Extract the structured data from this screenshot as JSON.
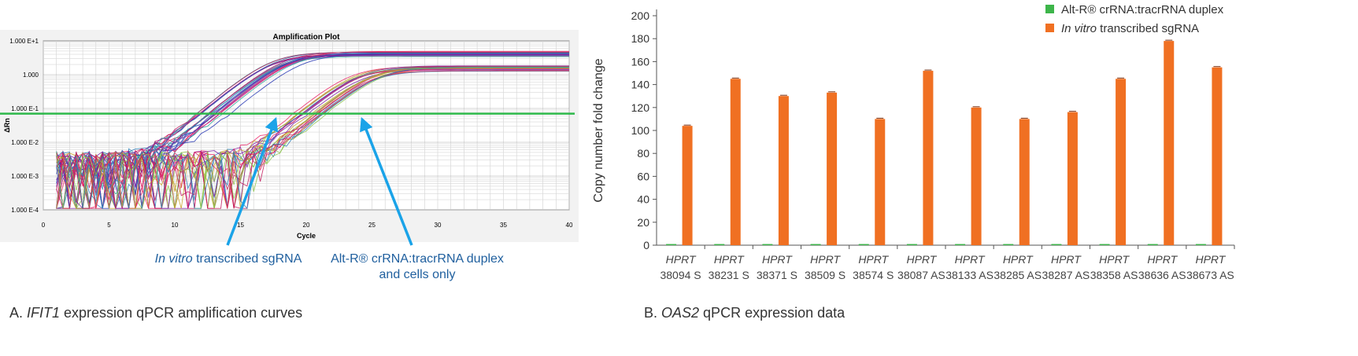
{
  "left": {
    "caption_prefix": "A. ",
    "caption_gene": "IFIT1",
    "caption_rest": " expression qPCR amplification curves",
    "chart_data": {
      "type": "line",
      "title": "Amplification Plot",
      "xlabel": "Cycle",
      "ylabel": "ΔRn",
      "xlim": [
        0,
        40
      ],
      "xticks": [
        0,
        5,
        10,
        15,
        20,
        25,
        30,
        35,
        40
      ],
      "yscale": "log",
      "ylim": [
        0.0001,
        10
      ],
      "ytick_labels": [
        "1.000 E+1",
        "1.000",
        "1.000 E-1",
        "1.000 E-2",
        "1.000 E-3",
        "1.000 E-4"
      ],
      "ytick_values": [
        10,
        1,
        0.1,
        0.01,
        0.001,
        0.0001
      ],
      "threshold": 0.07,
      "threshold_color": "#2db84a",
      "grid": true,
      "series": [
        {
          "group": "early",
          "midpoint_cycle": 18.5,
          "plateau": 4.5,
          "baseline": 0.002,
          "colors": [
            "#1e2fb0",
            "#c2185b",
            "#2b7fb8",
            "#7b1fa2",
            "#e91e63",
            "#26a69a"
          ]
        },
        {
          "group": "late",
          "midpoint_cycle": 24.5,
          "plateau": 1.7,
          "baseline": 0.002,
          "colors": [
            "#c2185b",
            "#e91e63",
            "#2b7fb8",
            "#8bc34a",
            "#7b1fa2",
            "#c9a227"
          ]
        }
      ]
    },
    "annotations": {
      "ivt_italic": "In vitro",
      "ivt_rest": " transcribed sgRNA",
      "alt_line1": "Alt-R® crRNA:tracrRNA duplex",
      "alt_line2": "and cells only",
      "arrow_color": "#1aa3e8"
    }
  },
  "right": {
    "caption_prefix": "B. ",
    "caption_gene": "OAS2",
    "caption_rest": " qPCR expression data",
    "chart_data": {
      "type": "bar",
      "ylabel": "Copy number fold change",
      "ylim": [
        0,
        200
      ],
      "yticks": [
        0,
        20,
        40,
        60,
        80,
        100,
        120,
        140,
        160,
        180,
        200
      ],
      "categories": [
        {
          "line1": "HPRT",
          "line2": "38094 S"
        },
        {
          "line1": "HPRT",
          "line2": "38231 S"
        },
        {
          "line1": "HPRT",
          "line2": "38371 S"
        },
        {
          "line1": "HPRT",
          "line2": "38509 S"
        },
        {
          "line1": "HPRT",
          "line2": "38574 S"
        },
        {
          "line1": "HPRT",
          "line2": "38087 AS"
        },
        {
          "line1": "HPRT",
          "line2": "38133 AS"
        },
        {
          "line1": "HPRT",
          "line2": "38285 AS"
        },
        {
          "line1": "HPRT",
          "line2": "38287 AS"
        },
        {
          "line1": "HPRT",
          "line2": "38358 AS"
        },
        {
          "line1": "HPRT",
          "line2": "38636 AS"
        },
        {
          "line1": "HPRT",
          "line2": "38673 AS"
        }
      ],
      "series": [
        {
          "name": "Alt-R® crRNA:tracrRNA duplex",
          "color": "#3db54a",
          "values": [
            1,
            1,
            1,
            1,
            1,
            1,
            1,
            1,
            1,
            1,
            1,
            1
          ]
        },
        {
          "name": "In vitro transcribed sgRNA",
          "name_italic": "In vitro",
          "name_rest": " transcribed sgRNA",
          "color": "#f07022",
          "values": [
            104,
            145,
            130,
            133,
            110,
            152,
            120,
            110,
            116,
            145,
            178,
            155
          ]
        }
      ],
      "legend_position": "top-right",
      "grid": false
    }
  }
}
